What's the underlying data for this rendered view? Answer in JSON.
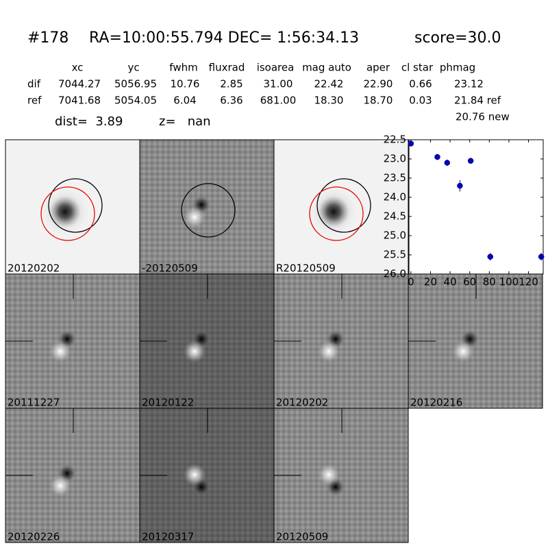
{
  "header": {
    "id": "#178",
    "coords": "RA=10:00:55.794 DEC= 1:56:34.13",
    "score": "score=30.0"
  },
  "table": {
    "columns": [
      "xc",
      "yc",
      "fwhm",
      "fluxrad",
      "isoarea",
      "mag auto",
      "aper",
      "cl star",
      "phmag"
    ],
    "rows": [
      {
        "label": "dif",
        "cells": [
          "7044.27",
          "5056.95",
          "10.76",
          "2.85",
          "31.00",
          "22.42",
          "22.90",
          "0.66",
          "23.12"
        ]
      },
      {
        "label": "ref",
        "cells": [
          "7041.68",
          "5054.05",
          "6.04",
          "6.36",
          "681.00",
          "18.30",
          "18.70",
          "0.03",
          "21.84 ref"
        ]
      }
    ],
    "extra": "20.76 new"
  },
  "info": {
    "dist": "dist=  3.89",
    "z": "z=   nan"
  },
  "stamps": [
    {
      "label": "20120202",
      "style": "ref"
    },
    {
      "label": "-20120509",
      "style": "diff"
    },
    {
      "label": "R20120509",
      "style": "ref"
    },
    {
      "label": "20111227",
      "style": "cross"
    },
    {
      "label": "20120122",
      "style": "cross"
    },
    {
      "label": "20120202",
      "style": "cross",
      "label_color": "#ff0000"
    },
    {
      "label": "20120216",
      "style": "cross"
    },
    {
      "label": "20120226",
      "style": "cross"
    },
    {
      "label": "20120317",
      "style": "cross"
    },
    {
      "label": "20120509",
      "style": "cross"
    }
  ],
  "chart_data": {
    "type": "scatter",
    "color": "#0000cc",
    "x": [
      0,
      27,
      37,
      50,
      61,
      81,
      133
    ],
    "values": [
      22.6,
      22.95,
      23.1,
      23.7,
      23.05,
      25.55,
      25.55
    ],
    "errors": [
      0.05,
      0.05,
      0.08,
      0.15,
      0.06,
      0.1,
      0.1
    ],
    "xlim": [
      -2,
      135
    ],
    "ylim": [
      26.0,
      22.5
    ],
    "y_inverted": true,
    "xticks": [
      0,
      20,
      40,
      60,
      80,
      100,
      120
    ],
    "yticks": [
      {
        "value": 22.5,
        "label": "22.5"
      },
      {
        "value": 23.0,
        "label": "23.0"
      },
      {
        "value": 23.5,
        "label": "23.5"
      },
      {
        "value": 24.0,
        "label": "24.0"
      },
      {
        "value": 24.5,
        "label": "24.5"
      },
      {
        "value": 25.0,
        "label": "25.0"
      },
      {
        "value": 25.5,
        "label": "25.5"
      },
      {
        "value": 26.0,
        "label": "26.0"
      }
    ]
  }
}
